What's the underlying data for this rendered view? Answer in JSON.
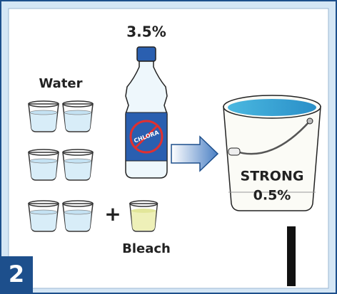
{
  "bottle": {
    "percent": "3.5%",
    "brand": "CHLORA"
  },
  "water_label": "Water",
  "plus": "+",
  "bleach_label": "Bleach",
  "bucket": {
    "strength": "STRONG",
    "percent": "0.5%"
  },
  "step": "2"
}
